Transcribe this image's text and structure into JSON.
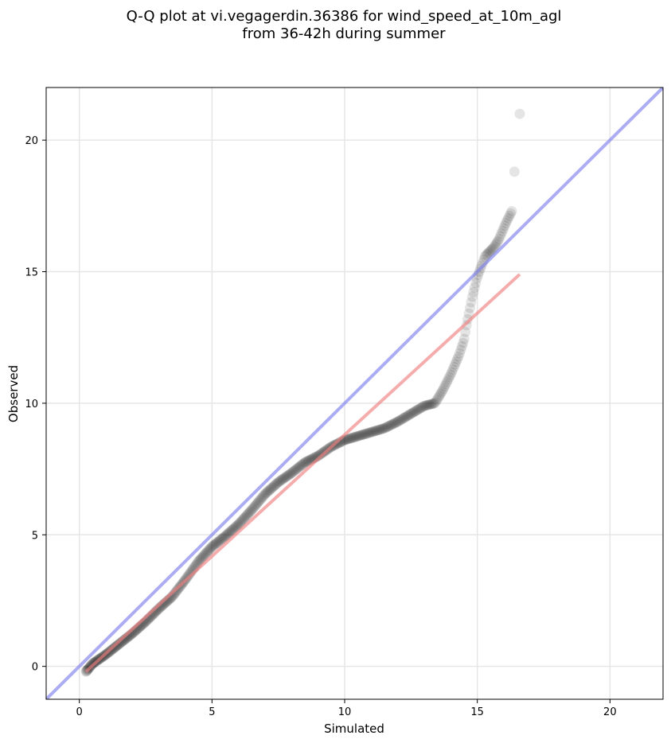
{
  "chart_data": {
    "type": "scatter",
    "title_line1": "Q-Q plot at vi.vegagerdin.36386 for wind_speed_at_10m_agl",
    "title_line2": "from 36-42h during summer",
    "xlabel": "Simulated",
    "ylabel": "Observed",
    "xlim": [
      -1.25,
      22.0
    ],
    "ylim": [
      -1.25,
      22.0
    ],
    "xticks": [
      {
        "v": 0,
        "label": "0"
      },
      {
        "v": 5,
        "label": "5"
      },
      {
        "v": 10,
        "label": "10"
      },
      {
        "v": 15,
        "label": "15"
      },
      {
        "v": 20,
        "label": "20"
      }
    ],
    "yticks": [
      {
        "v": 0,
        "label": "0"
      },
      {
        "v": 5,
        "label": "5"
      },
      {
        "v": 10,
        "label": "10"
      },
      {
        "v": 15,
        "label": "15"
      },
      {
        "v": 20,
        "label": "20"
      }
    ],
    "grid": true,
    "reference_line": {
      "x": [
        -1.25,
        22.0
      ],
      "y": [
        -1.25,
        22.0
      ],
      "color": "#8080f0"
    },
    "fit_line": {
      "x": [
        0.25,
        16.6
      ],
      "y": [
        -0.2,
        14.9
      ],
      "color": "#f08080"
    },
    "points_color": "#000000",
    "quantile_curve": [
      [
        0.25,
        -0.2
      ],
      [
        0.5,
        0.1
      ],
      [
        1.0,
        0.45
      ],
      [
        1.5,
        0.85
      ],
      [
        2.0,
        1.25
      ],
      [
        2.5,
        1.7
      ],
      [
        3.0,
        2.2
      ],
      [
        3.5,
        2.65
      ],
      [
        4.0,
        3.3
      ],
      [
        4.5,
        4.0
      ],
      [
        5.0,
        4.55
      ],
      [
        5.5,
        4.95
      ],
      [
        6.0,
        5.4
      ],
      [
        6.5,
        5.95
      ],
      [
        7.0,
        6.55
      ],
      [
        7.5,
        7.0
      ],
      [
        8.0,
        7.35
      ],
      [
        8.5,
        7.75
      ],
      [
        9.0,
        8.0
      ],
      [
        9.5,
        8.35
      ],
      [
        10.0,
        8.6
      ],
      [
        10.5,
        8.75
      ],
      [
        11.0,
        8.9
      ],
      [
        11.5,
        9.05
      ],
      [
        12.0,
        9.3
      ],
      [
        12.5,
        9.6
      ],
      [
        13.0,
        9.9
      ],
      [
        13.4,
        10.0
      ],
      [
        13.7,
        10.5
      ],
      [
        14.0,
        11.1
      ],
      [
        14.3,
        11.8
      ],
      [
        14.5,
        12.4
      ],
      [
        14.6,
        13.0
      ],
      [
        14.8,
        14.0
      ],
      [
        15.0,
        14.8
      ],
      [
        15.3,
        15.6
      ],
      [
        15.6,
        15.9
      ],
      [
        15.8,
        16.2
      ],
      [
        16.1,
        16.9
      ],
      [
        16.3,
        17.3
      ]
    ],
    "outliers": [
      [
        16.4,
        18.8
      ],
      [
        16.6,
        21.0
      ]
    ],
    "point_count": 420
  }
}
